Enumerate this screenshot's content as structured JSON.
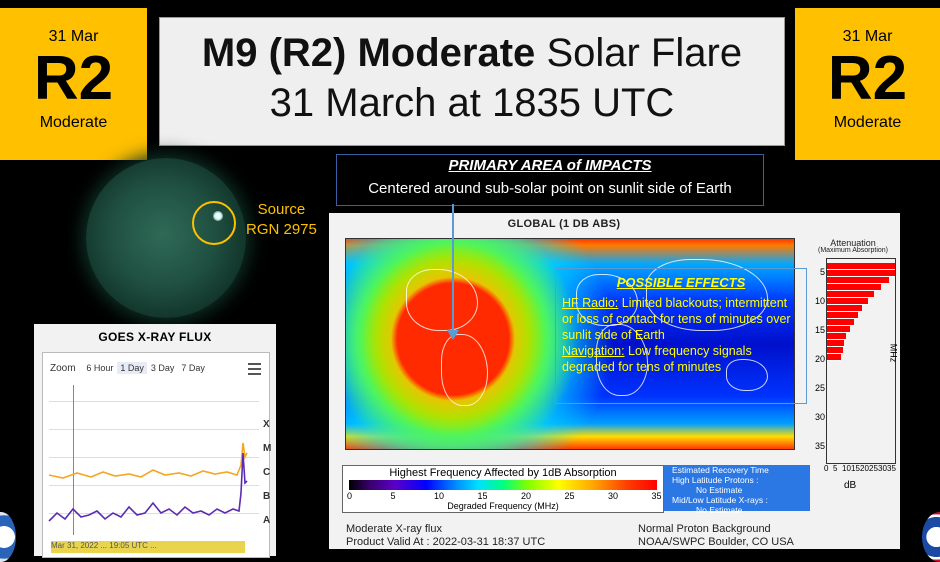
{
  "left_badge": {
    "date": "31 Mar",
    "code": "R2",
    "level": "Moderate"
  },
  "right_badge": {
    "date": "31 Mar",
    "code": "R2",
    "level": "Moderate"
  },
  "title": {
    "line1_bold": "M9 (R2) Moderate",
    "line1_rest": "Solar Flare",
    "line2": "31 March at 1835 UTC"
  },
  "source": {
    "line1": "Source",
    "line2": "RGN 2975"
  },
  "primary": {
    "heading": "PRIMARY AREA of IMPACTS",
    "text": "Centered around sub-solar point on sunlit side of Earth"
  },
  "global": {
    "title": "GLOBAL (1 DB ABS)",
    "attenuation_title": "Attenuation",
    "attenuation_subtitle": "(Maximum Absorption)",
    "mhz_label": "MHz",
    "db_label": "dB",
    "mhz_ticks": [
      "5",
      "10",
      "15",
      "20",
      "25",
      "30",
      "35"
    ],
    "db_ticks": [
      "0",
      "5",
      "10",
      "15",
      "20",
      "25",
      "30",
      "35"
    ],
    "attenuation_levels_db": [
      35,
      35,
      32,
      28,
      24,
      21,
      18,
      16,
      14,
      12,
      10,
      9,
      8,
      7
    ]
  },
  "effects": {
    "heading": "POSSIBLE EFFECTS",
    "hf_label": "HF Radio:",
    "hf_text": "Limited blackouts; intermittent or loss of contact for tens of minutes over sunlit side of Earth",
    "nav_label": "Navigation:",
    "nav_text": "Low frequency signals degraded for tens of minutes"
  },
  "hfa": {
    "heading": "Highest Frequency Affected by 1dB Absorption",
    "ticks": [
      "0",
      "5",
      "10",
      "15",
      "20",
      "25",
      "30",
      "35"
    ],
    "label": "Degraded Frequency (MHz)"
  },
  "recovery": {
    "title": "Estimated Recovery Time",
    "high_label": "High Latitude Protons :",
    "high_value": "No Estimate",
    "mid_label": "Mid/Low Latitude X-rays :",
    "mid_value": "No Estimate"
  },
  "footer": {
    "left_line1": "Moderate X-ray flux",
    "left_line2": "Product Valid At : 2022-03-31 18:37 UTC",
    "right_line1": "Normal Proton Background",
    "right_line2": "NOAA/SWPC Boulder, CO USA"
  },
  "goes": {
    "title": "GOES X-RAY FLUX",
    "zoom_label": "Zoom",
    "zoom_options": [
      "6 Hour",
      "1 Day",
      "3 Day",
      "7 Day"
    ],
    "zoom_selected": "1 Day",
    "classes": [
      "X",
      "M",
      "C",
      "B",
      "A"
    ],
    "navigator_text": "Mar 31, 2022 ... 19:05 UTC ..."
  },
  "colors": {
    "badge": "#ffc000",
    "effects_text": "#ffff00",
    "arrow": "#5b9bd5",
    "recovery_bg": "#2b78e4"
  }
}
